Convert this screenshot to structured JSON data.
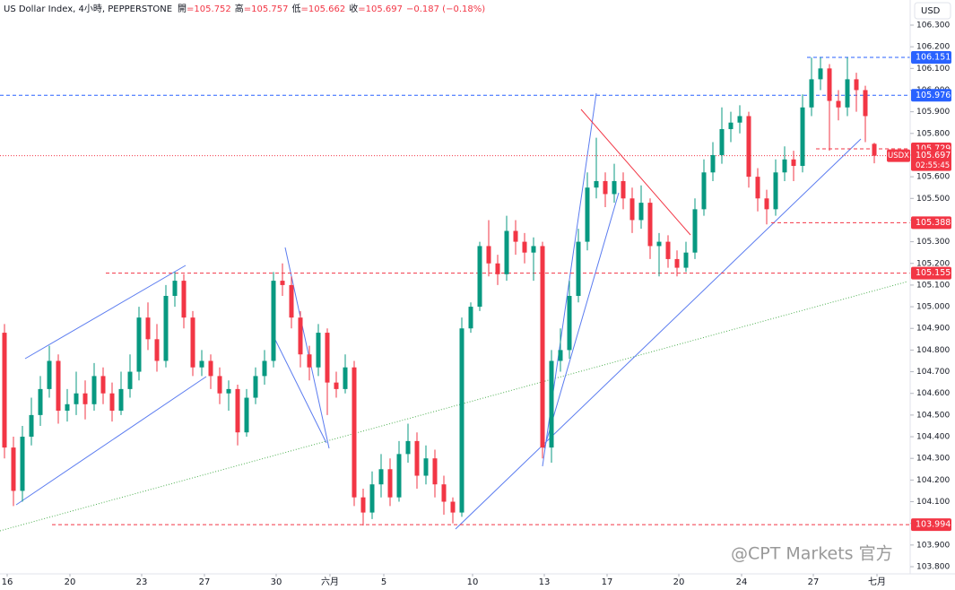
{
  "header": {
    "title": "US Dollar Index, 4小時, PEPPERSTONE",
    "open_label": "開",
    "open": "=105.752",
    "high_label": "高",
    "high": "=105.757",
    "low_label": "低",
    "low": "=105.662",
    "close_label": "收",
    "close": "=105.697",
    "change": "−0.187 (−0.18%)",
    "currency": "USD"
  },
  "watermark": "@CPT Markets 官方",
  "chart_data": {
    "type": "candlestick",
    "up_color": "#089981",
    "down_color": "#f23645",
    "xlim": [
      -0.5,
      97.5
    ],
    "ylim": [
      103.8,
      106.3
    ],
    "xticks": [
      {
        "value": 0.3,
        "label": "16"
      },
      {
        "value": 7.3,
        "label": "20"
      },
      {
        "value": 15.3,
        "label": "23"
      },
      {
        "value": 22.3,
        "label": "27"
      },
      {
        "value": 30.3,
        "label": "30"
      },
      {
        "value": 36.3,
        "label": "六月"
      },
      {
        "value": 42.3,
        "label": "5"
      },
      {
        "value": 52.2,
        "label": "10"
      },
      {
        "value": 60.2,
        "label": "13"
      },
      {
        "value": 67.2,
        "label": "17"
      },
      {
        "value": 75.2,
        "label": "20"
      },
      {
        "value": 82.2,
        "label": "24"
      },
      {
        "value": 90.2,
        "label": "27"
      },
      {
        "value": 97.3,
        "label": "七月"
      }
    ],
    "yticks": [
      {
        "value": 103.8,
        "label": "103.800"
      },
      {
        "value": 103.9,
        "label": "103.900"
      },
      {
        "value": 104.0,
        "label": "104.000"
      },
      {
        "value": 104.1,
        "label": "104.100"
      },
      {
        "value": 104.2,
        "label": "104.200"
      },
      {
        "value": 104.3,
        "label": "104.300"
      },
      {
        "value": 104.4,
        "label": "104.400"
      },
      {
        "value": 104.5,
        "label": "104.500"
      },
      {
        "value": 104.6,
        "label": "104.600"
      },
      {
        "value": 104.7,
        "label": "104.700"
      },
      {
        "value": 104.8,
        "label": "104.800"
      },
      {
        "value": 104.9,
        "label": "104.900"
      },
      {
        "value": 105.0,
        "label": "105.000"
      },
      {
        "value": 105.1,
        "label": "105.100"
      },
      {
        "value": 105.2,
        "label": "105.200"
      },
      {
        "value": 105.3,
        "label": "105.300"
      },
      {
        "value": 105.4,
        "label": "105.400"
      },
      {
        "value": 105.5,
        "label": "105.500"
      },
      {
        "value": 105.6,
        "label": "105.600"
      },
      {
        "value": 105.7,
        "label": "105.700"
      },
      {
        "value": 105.8,
        "label": "105.800"
      },
      {
        "value": 105.9,
        "label": "105.900"
      },
      {
        "value": 106.0,
        "label": "106.000"
      },
      {
        "value": 106.1,
        "label": "106.100"
      },
      {
        "value": 106.2,
        "label": "106.200"
      },
      {
        "value": 106.3,
        "label": "106.300"
      }
    ],
    "candles": [
      [
        104.88,
        104.92,
        104.3,
        104.35
      ],
      [
        104.35,
        104.4,
        104.08,
        104.15
      ],
      [
        104.15,
        104.45,
        104.1,
        104.4
      ],
      [
        104.4,
        104.58,
        104.36,
        104.5
      ],
      [
        104.5,
        104.68,
        104.45,
        104.62
      ],
      [
        104.62,
        104.82,
        104.58,
        104.75
      ],
      [
        104.75,
        104.78,
        104.46,
        104.52
      ],
      [
        104.52,
        104.62,
        104.47,
        104.55
      ],
      [
        104.55,
        104.7,
        104.5,
        104.6
      ],
      [
        104.6,
        104.66,
        104.48,
        104.55
      ],
      [
        104.55,
        104.74,
        104.52,
        104.68
      ],
      [
        104.68,
        104.72,
        104.55,
        104.6
      ],
      [
        104.6,
        104.65,
        104.47,
        104.52
      ],
      [
        104.52,
        104.7,
        104.5,
        104.62
      ],
      [
        104.62,
        104.78,
        104.58,
        104.7
      ],
      [
        104.7,
        105.0,
        104.66,
        104.95
      ],
      [
        104.95,
        105.02,
        104.8,
        104.85
      ],
      [
        104.85,
        104.92,
        104.7,
        104.75
      ],
      [
        104.75,
        105.1,
        104.72,
        105.05
      ],
      [
        105.05,
        105.16,
        105.0,
        105.12
      ],
      [
        105.12,
        105.15,
        104.9,
        104.95
      ],
      [
        104.95,
        104.98,
        104.68,
        104.72
      ],
      [
        104.72,
        104.8,
        104.68,
        104.75
      ],
      [
        104.75,
        104.78,
        104.62,
        104.68
      ],
      [
        104.68,
        104.72,
        104.55,
        104.6
      ],
      [
        104.6,
        104.66,
        104.52,
        104.62
      ],
      [
        104.62,
        104.64,
        104.36,
        104.42
      ],
      [
        104.42,
        104.62,
        104.4,
        104.58
      ],
      [
        104.58,
        104.72,
        104.55,
        104.68
      ],
      [
        104.68,
        104.8,
        104.64,
        104.75
      ],
      [
        104.75,
        105.16,
        104.72,
        105.12
      ],
      [
        105.12,
        105.2,
        105.05,
        105.1
      ],
      [
        105.1,
        105.14,
        104.9,
        104.95
      ],
      [
        104.95,
        104.98,
        104.72,
        104.78
      ],
      [
        104.78,
        104.82,
        104.66,
        104.72
      ],
      [
        104.72,
        104.92,
        104.68,
        104.88
      ],
      [
        104.88,
        104.9,
        104.5,
        104.65
      ],
      [
        104.65,
        104.7,
        104.58,
        104.62
      ],
      [
        104.62,
        104.78,
        104.6,
        104.72
      ],
      [
        104.72,
        104.75,
        104.08,
        104.12
      ],
      [
        104.12,
        104.16,
        103.99,
        104.05
      ],
      [
        104.05,
        104.24,
        104.02,
        104.18
      ],
      [
        104.18,
        104.32,
        104.12,
        104.25
      ],
      [
        104.25,
        104.3,
        104.08,
        104.12
      ],
      [
        104.12,
        104.38,
        104.1,
        104.32
      ],
      [
        104.32,
        104.46,
        104.28,
        104.38
      ],
      [
        104.38,
        104.42,
        104.16,
        104.22
      ],
      [
        104.22,
        104.36,
        104.18,
        104.3
      ],
      [
        104.3,
        104.34,
        104.12,
        104.18
      ],
      [
        104.18,
        104.22,
        104.04,
        104.1
      ],
      [
        104.1,
        104.12,
        104.0,
        104.05
      ],
      [
        104.05,
        104.95,
        104.03,
        104.9
      ],
      [
        104.9,
        105.02,
        104.88,
        105.0
      ],
      [
        105.0,
        105.3,
        104.98,
        105.28
      ],
      [
        105.28,
        105.4,
        105.14,
        105.2
      ],
      [
        105.2,
        105.24,
        105.1,
        105.15
      ],
      [
        105.15,
        105.42,
        105.12,
        105.35
      ],
      [
        105.35,
        105.4,
        105.24,
        105.3
      ],
      [
        105.3,
        105.34,
        105.2,
        105.25
      ],
      [
        105.25,
        105.32,
        105.12,
        105.28
      ],
      [
        105.28,
        105.3,
        104.3,
        104.35
      ],
      [
        104.35,
        104.8,
        104.28,
        104.75
      ],
      [
        104.75,
        104.9,
        104.7,
        104.8
      ],
      [
        104.8,
        105.12,
        104.76,
        105.05
      ],
      [
        105.05,
        105.36,
        105.02,
        105.3
      ],
      [
        105.3,
        105.62,
        105.26,
        105.55
      ],
      [
        105.55,
        105.78,
        105.5,
        105.58
      ],
      [
        105.58,
        105.62,
        105.46,
        105.52
      ],
      [
        105.52,
        105.66,
        105.48,
        105.58
      ],
      [
        105.58,
        105.62,
        105.45,
        105.5
      ],
      [
        105.5,
        105.55,
        105.34,
        105.4
      ],
      [
        105.4,
        105.56,
        105.36,
        105.48
      ],
      [
        105.48,
        105.5,
        105.22,
        105.28
      ],
      [
        105.28,
        105.34,
        105.14,
        105.3
      ],
      [
        105.3,
        105.33,
        105.18,
        105.22
      ],
      [
        105.22,
        105.26,
        105.14,
        105.18
      ],
      [
        105.18,
        105.3,
        105.16,
        105.25
      ],
      [
        105.25,
        105.5,
        105.22,
        105.45
      ],
      [
        105.45,
        105.68,
        105.42,
        105.62
      ],
      [
        105.62,
        105.76,
        105.58,
        105.7
      ],
      [
        105.7,
        105.92,
        105.66,
        105.82
      ],
      [
        105.82,
        105.9,
        105.76,
        105.85
      ],
      [
        105.85,
        105.93,
        105.8,
        105.88
      ],
      [
        105.88,
        105.9,
        105.55,
        105.6
      ],
      [
        105.6,
        105.64,
        105.44,
        105.5
      ],
      [
        105.5,
        105.54,
        105.38,
        105.45
      ],
      [
        105.45,
        105.68,
        105.42,
        105.62
      ],
      [
        105.62,
        105.74,
        105.58,
        105.68
      ],
      [
        105.68,
        105.72,
        105.58,
        105.65
      ],
      [
        105.65,
        105.98,
        105.62,
        105.92
      ],
      [
        105.92,
        106.15,
        105.88,
        106.05
      ],
      [
        106.05,
        106.15,
        106.0,
        106.1
      ],
      [
        106.1,
        106.12,
        105.72,
        105.95
      ],
      [
        105.95,
        106.0,
        105.86,
        105.92
      ],
      [
        105.92,
        106.15,
        105.88,
        106.05
      ],
      [
        106.05,
        106.08,
        105.9,
        106.0
      ],
      [
        106.0,
        106.02,
        105.76,
        105.88
      ],
      [
        105.752,
        105.757,
        105.662,
        105.697
      ]
    ],
    "price_lines": [
      {
        "value": 106.151,
        "color": "#2962ff",
        "style": "dashed"
      },
      {
        "value": 105.976,
        "color": "#2962ff",
        "style": "dashed"
      },
      {
        "value": 105.729,
        "color": "#f23645",
        "style": "dashed"
      },
      {
        "value": 105.388,
        "color": "#f23645",
        "style": "dashed"
      },
      {
        "value": 105.155,
        "color": "#f23645",
        "style": "dashed"
      },
      {
        "value": 103.994,
        "color": "#f23645",
        "style": "dashed"
      }
    ],
    "current_price": {
      "value": 105.697,
      "symbol": "USDX",
      "countdown": "02:55:45",
      "color": "#f23645",
      "style": "dotted"
    }
  }
}
